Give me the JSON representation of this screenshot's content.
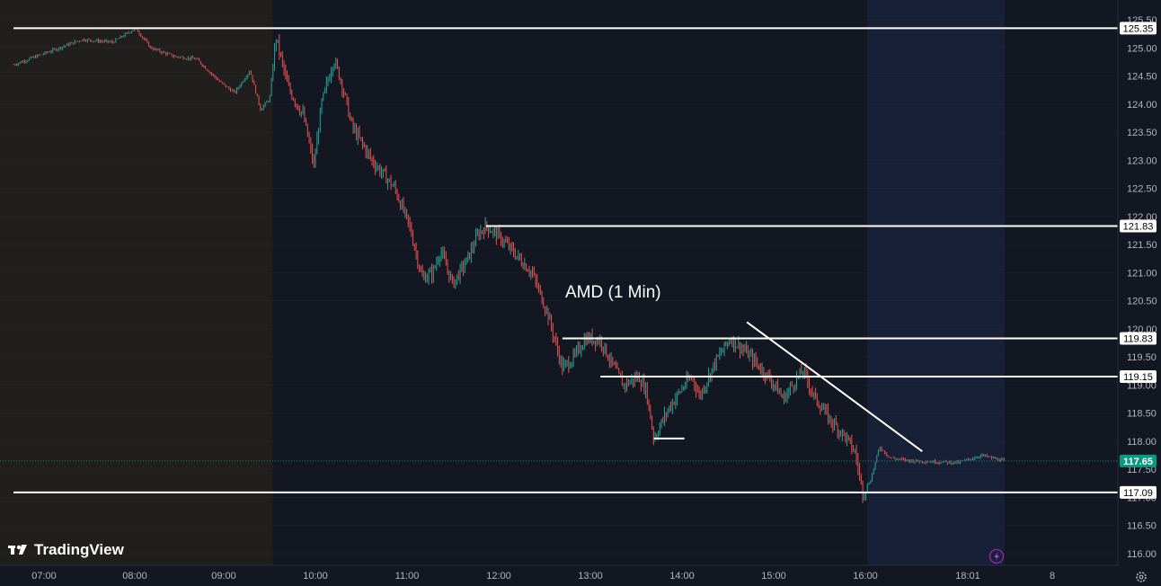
{
  "app": {
    "brand": "TradingView",
    "brand_icon": "tradingview-logo-icon",
    "settings_icon": "gear-icon",
    "alert_icon": "lightning-icon"
  },
  "colors": {
    "background": "#131722",
    "premarket_bg": "#211e1e",
    "postmarket_bg": "#172036",
    "up": "#26a69a",
    "down": "#ef5350",
    "level_line": "#ffffff",
    "last_price": "#089981",
    "axis_text": "#b2b5be"
  },
  "chart_data": {
    "type": "candlestick",
    "title": "AMD (1 Min)",
    "ylim": [
      115.9,
      125.6
    ],
    "xlabel": "",
    "ylabel": "",
    "y_ticks": [
      "125.50",
      "125.00",
      "124.50",
      "124.00",
      "123.50",
      "123.00",
      "122.50",
      "122.00",
      "121.50",
      "121.00",
      "120.50",
      "120.00",
      "119.50",
      "119.00",
      "118.50",
      "118.00",
      "117.50",
      "117.00",
      "116.50",
      "116.00"
    ],
    "x_ticks": [
      "07:00",
      "08:00",
      "09:00",
      "10:00",
      "11:00",
      "12:00",
      "13:00",
      "14:00",
      "15:00",
      "16:00",
      "18:01",
      "8"
    ],
    "sessions": {
      "premarket_end": "09:30",
      "regular_end": "16:00",
      "postmarket_end": "17:30"
    },
    "price_path": [
      [
        "06:40",
        124.7
      ],
      [
        "06:50",
        124.8
      ],
      [
        "07:05",
        124.95
      ],
      [
        "07:25",
        125.15
      ],
      [
        "07:45",
        125.1
      ],
      [
        "08:00",
        125.35
      ],
      [
        "08:10",
        125.0
      ],
      [
        "08:25",
        124.85
      ],
      [
        "08:40",
        124.8
      ],
      [
        "08:55",
        124.4
      ],
      [
        "09:05",
        124.2
      ],
      [
        "09:15",
        124.6
      ],
      [
        "09:22",
        123.9
      ],
      [
        "09:28",
        124.1
      ],
      [
        "09:32",
        125.2
      ],
      [
        "09:40",
        124.3
      ],
      [
        "09:50",
        123.8
      ],
      [
        "09:57",
        122.9
      ],
      [
        "10:02",
        124.0
      ],
      [
        "10:10",
        124.8
      ],
      [
        "10:15",
        124.4
      ],
      [
        "10:22",
        123.6
      ],
      [
        "10:35",
        123.0
      ],
      [
        "10:50",
        122.5
      ],
      [
        "11:00",
        121.8
      ],
      [
        "11:08",
        120.9
      ],
      [
        "11:15",
        121.0
      ],
      [
        "11:20",
        121.4
      ],
      [
        "11:28",
        120.8
      ],
      [
        "11:37",
        121.2
      ],
      [
        "11:45",
        121.7
      ],
      [
        "11:50",
        121.83
      ],
      [
        "12:00",
        121.6
      ],
      [
        "12:10",
        121.3
      ],
      [
        "12:20",
        121.0
      ],
      [
        "12:30",
        120.3
      ],
      [
        "12:40",
        119.3
      ],
      [
        "12:48",
        119.5
      ],
      [
        "12:55",
        119.83
      ],
      [
        "13:05",
        119.8
      ],
      [
        "13:12",
        119.4
      ],
      [
        "13:20",
        119.0
      ],
      [
        "13:30",
        119.15
      ],
      [
        "13:35",
        118.9
      ],
      [
        "13:40",
        118.05
      ],
      [
        "13:50",
        118.6
      ],
      [
        "14:00",
        119.0
      ],
      [
        "14:05",
        119.15
      ],
      [
        "14:10",
        118.8
      ],
      [
        "14:20",
        119.4
      ],
      [
        "14:30",
        119.83
      ],
      [
        "14:40",
        119.6
      ],
      [
        "14:50",
        119.3
      ],
      [
        "14:58",
        119.05
      ],
      [
        "15:05",
        118.75
      ],
      [
        "15:12",
        119.05
      ],
      [
        "15:18",
        119.25
      ],
      [
        "15:25",
        118.8
      ],
      [
        "15:35",
        118.4
      ],
      [
        "15:45",
        118.1
      ],
      [
        "15:52",
        117.8
      ],
      [
        "15:57",
        117.09
      ],
      [
        "16:02",
        117.3
      ],
      [
        "16:08",
        117.9
      ],
      [
        "16:15",
        117.7
      ],
      [
        "16:30",
        117.65
      ],
      [
        "17:00",
        117.62
      ],
      [
        "17:15",
        117.75
      ],
      [
        "17:25",
        117.68
      ],
      [
        "17:30",
        117.65
      ]
    ],
    "levels": [
      {
        "price": 125.35,
        "label": "125.35",
        "from": "06:40"
      },
      {
        "price": 121.83,
        "label": "121.83",
        "from": "11:50"
      },
      {
        "price": 119.83,
        "label": "119.83",
        "from": "12:40"
      },
      {
        "price": 119.15,
        "label": "119.15",
        "from": "13:05"
      },
      {
        "price": 117.09,
        "label": "117.09",
        "from": "06:40"
      }
    ],
    "support_segment": {
      "price": 118.05,
      "from": "13:40",
      "to": "14:00"
    },
    "trendline": {
      "from": [
        "14:41",
        120.12
      ],
      "to": [
        "16:36",
        117.82
      ]
    },
    "last_price": {
      "price": 117.65,
      "label": "117.65"
    }
  }
}
